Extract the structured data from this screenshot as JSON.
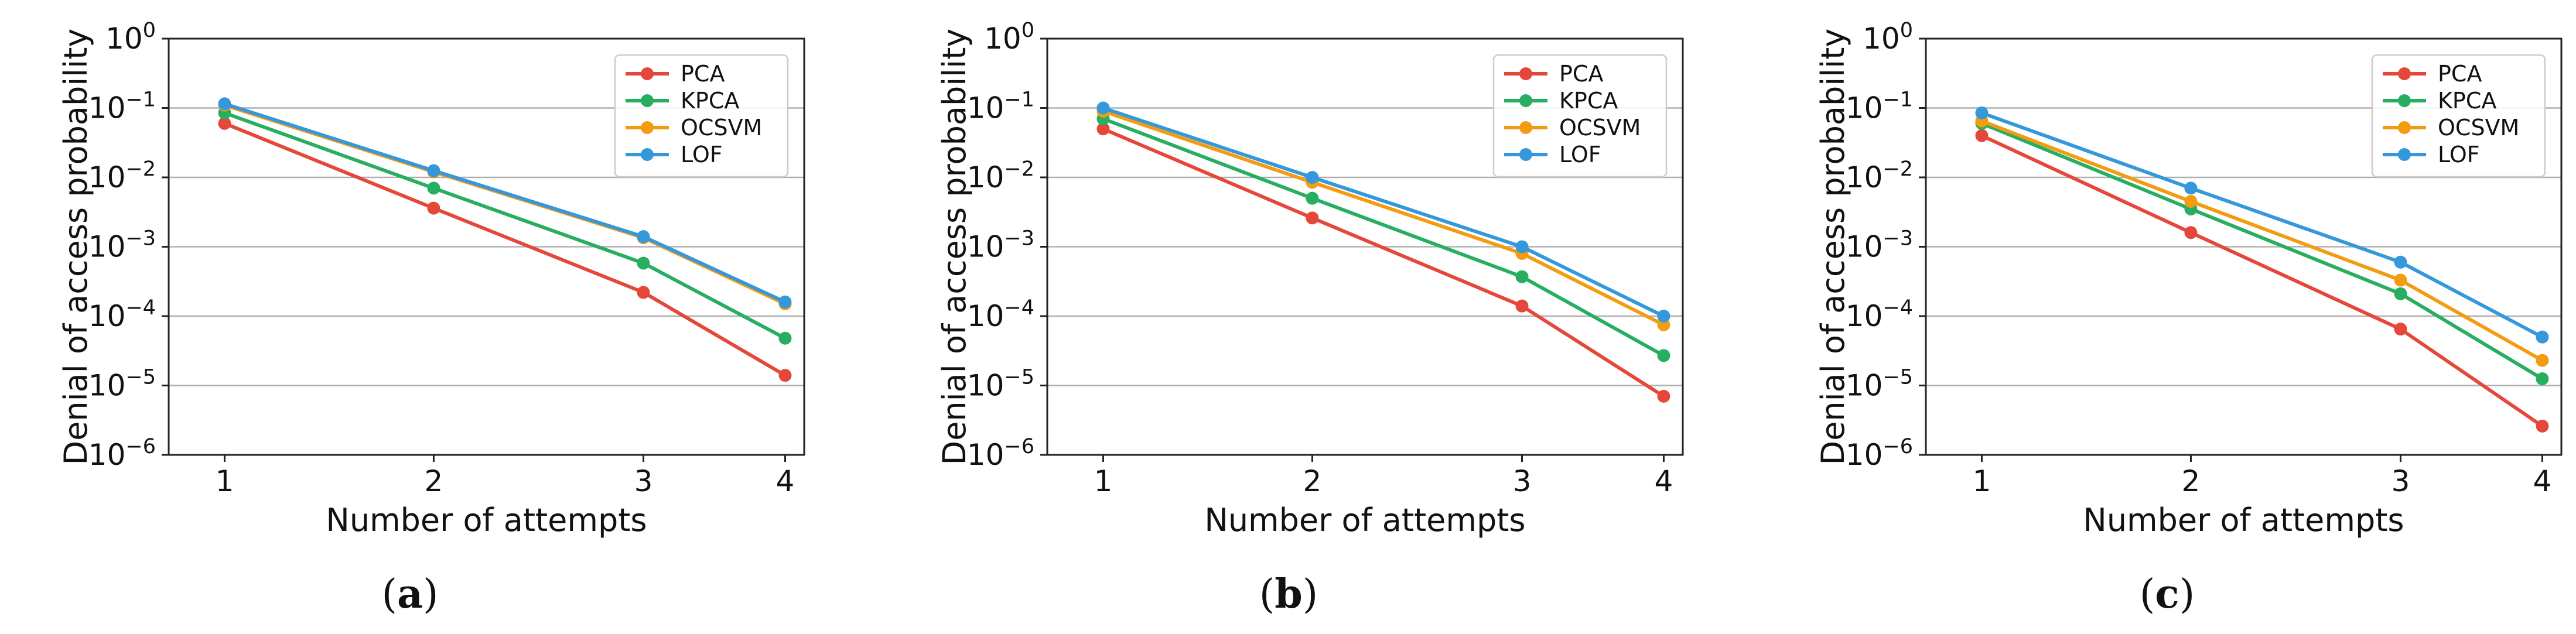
{
  "series_colors": {
    "PCA": "#e5483a",
    "KPCA": "#27ae60",
    "OCSVM": "#f39c12",
    "LOF": "#3498db"
  },
  "chart_data": [
    {
      "type": "line",
      "caption": {
        "open": "(",
        "letter": "a",
        "close": ")"
      },
      "xlabel": "Number of attempts",
      "ylabel": "Denial of access probability",
      "yscale": "log",
      "ylim": [
        1e-06,
        1
      ],
      "x": [
        1,
        2,
        3,
        4
      ],
      "x_tick_labels": [
        "1",
        "2",
        "3",
        "4"
      ],
      "y_tick_labels": [
        {
          "base": "10",
          "exp": "0"
        },
        {
          "base": "10",
          "exp": "−1"
        },
        {
          "base": "10",
          "exp": "−2"
        },
        {
          "base": "10",
          "exp": "−3"
        },
        {
          "base": "10",
          "exp": "−4"
        },
        {
          "base": "10",
          "exp": "−5"
        },
        {
          "base": "10",
          "exp": "−6"
        }
      ],
      "grid": "horizontal",
      "legend_position": "top-right",
      "series": [
        {
          "name": "PCA",
          "values": [
            0.06,
            0.0036,
            0.00022,
            1.4e-05
          ]
        },
        {
          "name": "KPCA",
          "values": [
            0.085,
            0.007,
            0.00058,
            4.8e-05
          ]
        },
        {
          "name": "OCSVM",
          "values": [
            0.11,
            0.012,
            0.00135,
            0.00015
          ]
        },
        {
          "name": "LOF",
          "values": [
            0.115,
            0.0125,
            0.0014,
            0.00016
          ]
        }
      ]
    },
    {
      "type": "line",
      "caption": {
        "open": "(",
        "letter": "b",
        "close": ")"
      },
      "xlabel": "Number of attempts",
      "ylabel": "Denial of access probability",
      "yscale": "log",
      "ylim": [
        1e-06,
        1
      ],
      "x": [
        1,
        2,
        3,
        4
      ],
      "x_tick_labels": [
        "1",
        "2",
        "3",
        "4"
      ],
      "y_tick_labels": [
        {
          "base": "10",
          "exp": "0"
        },
        {
          "base": "10",
          "exp": "−1"
        },
        {
          "base": "10",
          "exp": "−2"
        },
        {
          "base": "10",
          "exp": "−3"
        },
        {
          "base": "10",
          "exp": "−4"
        },
        {
          "base": "10",
          "exp": "−5"
        },
        {
          "base": "10",
          "exp": "−6"
        }
      ],
      "grid": "horizontal",
      "legend_position": "top-right",
      "series": [
        {
          "name": "PCA",
          "values": [
            0.05,
            0.0026,
            0.00014,
            7e-06
          ]
        },
        {
          "name": "KPCA",
          "values": [
            0.07,
            0.005,
            0.00037,
            2.7e-05
          ]
        },
        {
          "name": "OCSVM",
          "values": [
            0.09,
            0.0085,
            0.0008,
            7.5e-05
          ]
        },
        {
          "name": "LOF",
          "values": [
            0.1,
            0.01,
            0.001,
            0.0001
          ]
        }
      ]
    },
    {
      "type": "line",
      "caption": {
        "open": "(",
        "letter": "c",
        "close": ")"
      },
      "xlabel": "Number of attempts",
      "ylabel": "Denial of access probability",
      "yscale": "log",
      "ylim": [
        1e-06,
        1
      ],
      "x": [
        1,
        2,
        3,
        4
      ],
      "x_tick_labels": [
        "1",
        "2",
        "3",
        "4"
      ],
      "y_tick_labels": [
        {
          "base": "10",
          "exp": "0"
        },
        {
          "base": "10",
          "exp": "−1"
        },
        {
          "base": "10",
          "exp": "−2"
        },
        {
          "base": "10",
          "exp": "−3"
        },
        {
          "base": "10",
          "exp": "−4"
        },
        {
          "base": "10",
          "exp": "−5"
        },
        {
          "base": "10",
          "exp": "−6"
        }
      ],
      "grid": "horizontal",
      "legend_position": "top-right",
      "series": [
        {
          "name": "PCA",
          "values": [
            0.04,
            0.0016,
            6.5e-05,
            2.6e-06
          ]
        },
        {
          "name": "KPCA",
          "values": [
            0.06,
            0.0035,
            0.00021,
            1.25e-05
          ]
        },
        {
          "name": "OCSVM",
          "values": [
            0.065,
            0.0045,
            0.00033,
            2.3e-05
          ]
        },
        {
          "name": "LOF",
          "values": [
            0.085,
            0.007,
            0.0006,
            5e-05
          ]
        }
      ]
    }
  ]
}
